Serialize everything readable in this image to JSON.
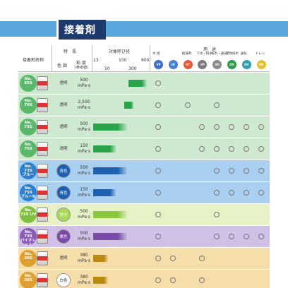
{
  "title": "接着剤",
  "header": {
    "product_col": "接着剤名称",
    "features_col": "特　長",
    "color_col": "色 調",
    "viscosity_col": "粘 度",
    "viscosity_sub": "(参考値)",
    "diameter_col": "対象呼び径",
    "ticks_top": [
      "13",
      "150",
      "600"
    ],
    "ticks_bottom": [
      "50",
      "300"
    ],
    "usage_col": "用　途",
    "usage_items": [
      {
        "label": "水 道",
        "icon": "VP",
        "color": "#3a6fc4"
      },
      {
        "label": "",
        "icon": "HI",
        "color": "#4a7fd0"
      },
      {
        "label": "給湯用",
        "icon": "HT",
        "color": "#e05a3a"
      },
      {
        "label": "下水・排水",
        "icon": "VP",
        "color": "#7a7a7a"
      },
      {
        "label": "排水・通気",
        "icon": "VU",
        "color": "#8a8a8a"
      },
      {
        "label": "建物排水",
        "icon": "DV",
        "color": "#2e9a44"
      },
      {
        "label": "通気",
        "icon": "DV",
        "color": "#2aa0b0"
      },
      {
        "label": "ドレン",
        "icon": "DR",
        "color": "#e0c030"
      }
    ]
  },
  "rows": [
    {
      "name": "No.65S",
      "name_lines": [
        "No.",
        "65S"
      ],
      "badge_color": "#5ab86a",
      "bg": "#cfe9d0",
      "color_label": "透明",
      "color_bg": "",
      "viscosity": "500",
      "unit": "mPa·s",
      "bar_start": 0.62,
      "bar_end": 0.96,
      "bar_color": "#2aa44a",
      "marks": [
        1,
        0,
        0,
        0,
        0,
        0,
        0,
        0
      ]
    },
    {
      "name": "No.70S",
      "name_lines": [
        "No.",
        "70S"
      ],
      "badge_color": "#5ab86a",
      "bg": "#cfe9d0",
      "color_label": "透明",
      "color_bg": "",
      "viscosity": "2,500",
      "unit": "mPa·s",
      "bar_start": 0.55,
      "bar_end": 0.72,
      "bar_color": "#2aa44a",
      "marks": [
        1,
        0,
        1,
        0,
        1,
        0,
        0,
        0
      ]
    },
    {
      "name": "No.73S",
      "name_lines": [
        "No.",
        "73S"
      ],
      "badge_color": "#5ab86a",
      "bg": "#cfe9d0",
      "color_label": "透明",
      "color_bg": "",
      "viscosity": "500",
      "unit": "mPa·s",
      "bar_start": 0.0,
      "bar_end": 0.62,
      "bar_color": "#2aa44a",
      "marks": [
        1,
        0,
        0,
        1,
        1,
        1,
        1,
        1
      ]
    },
    {
      "name": "No.75S",
      "name_lines": [
        "No.",
        "75S"
      ],
      "badge_color": "#5ab86a",
      "bg": "#cfe9d0",
      "color_label": "透明",
      "color_bg": "",
      "viscosity": "150",
      "unit": "mPa·s",
      "bar_start": 0.0,
      "bar_end": 0.42,
      "bar_color": "#2aa44a",
      "marks": [
        1,
        0,
        0,
        1,
        1,
        1,
        1,
        1
      ]
    },
    {
      "name": "No.73S ブルー",
      "name_lines": [
        "No.",
        "73S",
        "ブルー"
      ],
      "badge_color": "#2a7fd0",
      "bg": "#a9d0f0",
      "color_label": "青色",
      "color_bg": "#1f5fb0",
      "viscosity": "500",
      "unit": "mPa·s",
      "bar_start": 0.0,
      "bar_end": 0.62,
      "bar_color": "#1f5fb0",
      "marks": [
        1,
        0,
        0,
        0,
        1,
        1,
        1,
        1
      ]
    },
    {
      "name": "No.75S ブルーN",
      "name_lines": [
        "No.",
        "75S",
        "ブルーN"
      ],
      "badge_color": "#2a7fd0",
      "bg": "#a9d0f0",
      "color_label": "青色",
      "color_bg": "#1f5fb0",
      "viscosity": "150",
      "unit": "mPa·s",
      "bar_start": 0.0,
      "bar_end": 0.42,
      "bar_color": "#1f5fb0",
      "marks": [
        1,
        0,
        0,
        0,
        1,
        1,
        1,
        1
      ]
    },
    {
      "name": "No.73S UV",
      "name_lines": [
        "No.",
        "73S UV"
      ],
      "badge_color": "#7fc040",
      "bg": "#e6f2c6",
      "color_label": "蛍光",
      "color_bg": "#a6d85a",
      "viscosity": "500",
      "unit": "mPa·s",
      "bar_start": 0.0,
      "bar_end": 0.62,
      "bar_color": "#8cc63f",
      "marks": [
        1,
        0,
        0,
        0,
        1,
        0,
        0,
        0
      ]
    },
    {
      "name": "No.73S バイオレット",
      "name_lines": [
        "No.",
        "73S",
        "バイオレット"
      ],
      "badge_color": "#8a5ab8",
      "bg": "#d0c0e6",
      "color_label": "紫色",
      "color_bg": "#7a4aa8",
      "viscosity": "500",
      "unit": "mPa·s",
      "bar_start": 0.0,
      "bar_end": 0.62,
      "bar_color": "#7a4aa8",
      "marks": [
        1,
        0,
        0,
        0,
        1,
        1,
        1,
        1
      ]
    },
    {
      "name": "No.20S",
      "name_lines": [
        "No.",
        "20S"
      ],
      "badge_color": "#e0a030",
      "bg": "#f5deaa",
      "color_label": "透明",
      "color_bg": "",
      "viscosity": "380",
      "unit": "mPa·s",
      "bar_start": 0.0,
      "bar_end": 0.28,
      "bar_color": "#b88a10",
      "marks": [
        1,
        1,
        0,
        1,
        0,
        0,
        0,
        0
      ]
    },
    {
      "name": "No.20S",
      "name_lines": [
        "No.",
        "20S"
      ],
      "badge_color": "#e0a030",
      "bg": "#f5deaa",
      "color_label": "白色",
      "color_bg": "#ffffff",
      "viscosity": "380",
      "unit": "mPa·s",
      "bar_start": 0.0,
      "bar_end": 0.28,
      "bar_color": "#b88a10",
      "marks": [
        1,
        1,
        0,
        1,
        0,
        0,
        0,
        0
      ]
    }
  ]
}
